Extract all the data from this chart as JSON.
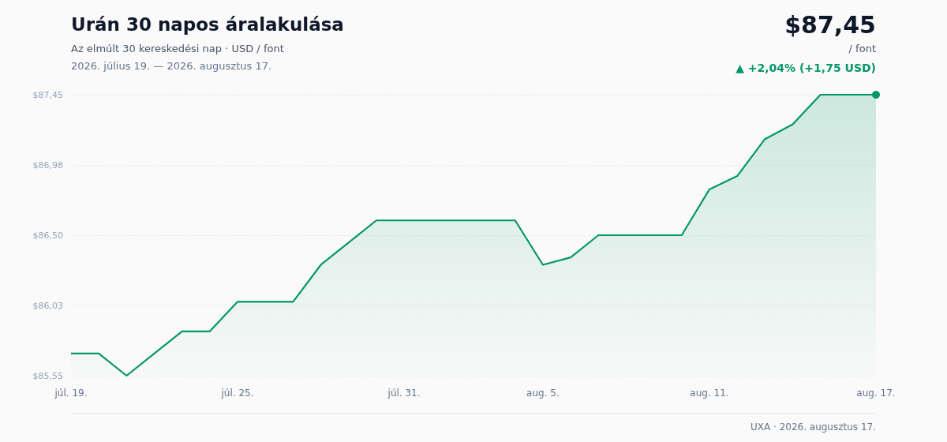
{
  "chart_data": {
    "type": "area",
    "title": "Urán 30 napos áralakulása",
    "subtitle": "Az elmúlt 30 kereskedési nap · USD / font",
    "annotations": [
      "2026. július 19. — 2026. augusztus 17.",
      "$87,45",
      "/ font",
      "▲ +2,04% (+1,75 USD)",
      "UXA · 2026. augusztus 17."
    ],
    "x": [
      "2026-07-19",
      "2026-07-20",
      "2026-07-21",
      "2026-07-22",
      "2026-07-23",
      "2026-07-24",
      "2026-07-25",
      "2026-07-26",
      "2026-07-27",
      "2026-07-28",
      "2026-07-29",
      "2026-07-30",
      "2026-07-31",
      "2026-08-01",
      "2026-08-02",
      "2026-08-03",
      "2026-08-04",
      "2026-08-05",
      "2026-08-06",
      "2026-08-07",
      "2026-08-08",
      "2026-08-09",
      "2026-08-10",
      "2026-08-11",
      "2026-08-12",
      "2026-08-13",
      "2026-08-14",
      "2026-08-15",
      "2026-08-16",
      "2026-08-17"
    ],
    "series": [
      {
        "color": "#059669",
        "values": [
          85.7,
          85.7,
          85.55,
          85.7,
          85.85,
          85.85,
          86.05,
          86.05,
          86.05,
          86.3,
          86.45,
          86.6,
          86.6,
          86.6,
          86.6,
          86.6,
          86.6,
          86.3,
          86.35,
          86.5,
          86.5,
          86.5,
          86.5,
          86.81,
          86.9,
          87.15,
          87.25,
          87.45,
          87.45,
          87.45
        ]
      }
    ],
    "xlim": [
      "2026-07-19",
      "2026-08-17"
    ],
    "xticks": [
      {
        "value": "2026-07-19",
        "label": "júl. 19."
      },
      {
        "value": "2026-07-25",
        "label": "júl. 25."
      },
      {
        "value": "2026-07-31",
        "label": "júl. 31."
      },
      {
        "value": "2026-08-05",
        "label": "aug. 5."
      },
      {
        "value": "2026-08-11",
        "label": "aug. 11."
      },
      {
        "value": "2026-08-17",
        "label": "aug. 17."
      }
    ],
    "ylim": [
      85.55,
      87.45
    ],
    "yticks": [
      {
        "value": 85.55,
        "label": "$85,55"
      },
      {
        "value": 86.025,
        "label": "$86,03"
      },
      {
        "value": 86.5,
        "label": "$86,50"
      },
      {
        "value": 86.975,
        "label": "$86,98"
      },
      {
        "value": 87.45,
        "label": "$87,45"
      }
    ],
    "grid": "y",
    "marker": "none",
    "line_style": "solid"
  }
}
